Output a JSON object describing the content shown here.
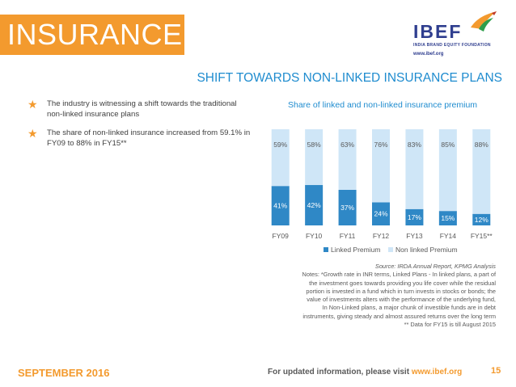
{
  "header": {
    "title": "INSURANCE",
    "logo": {
      "name": "IBEF",
      "subtitle": "INDIA BRAND EQUITY FOUNDATION",
      "url": "www.ibef.org"
    }
  },
  "subtitle": "SHIFT TOWARDS NON-LINKED INSURANCE PLANS",
  "bullets": [
    "The industry is witnessing a shift towards the traditional non-linked insurance plans",
    "The share of non-linked insurance increased from 59.1% in FY09 to 88% in FY15**"
  ],
  "chart_title": "Share of linked and non-linked insurance premium",
  "chart_data": {
    "type": "bar",
    "stacked": true,
    "categories": [
      "FY09",
      "FY10",
      "FY11",
      "FY12",
      "FY13",
      "FY14",
      "FY15**"
    ],
    "series": [
      {
        "name": "Linked Premium",
        "values": [
          41,
          42,
          37,
          24,
          17,
          15,
          12
        ],
        "labels": [
          "41%",
          "42%",
          "37%",
          "24%",
          "17%",
          "15%",
          "12%"
        ],
        "color": "#2f88c6"
      },
      {
        "name": "Non linked Premium",
        "values": [
          59,
          58,
          63,
          76,
          83,
          85,
          88
        ],
        "labels": [
          "59%",
          "58%",
          "63%",
          "76%",
          "83%",
          "85%",
          "88%"
        ],
        "color": "#cfe6f7"
      }
    ],
    "ylim": [
      0,
      100
    ],
    "grid": false,
    "legend": "bottom"
  },
  "source": {
    "source_line": "Source: IRDA Annual Report, KPMG Analysis",
    "notes": [
      "Notes: *Growth rate in INR terms, Linked Plans - In linked plans, a part of",
      "the investment goes towards providing you life cover while the residual",
      "portion is invested in a fund which in turn invests in stocks or bonds; the",
      "value of investments alters with the performance of the underlying fund,",
      "In Non-Linked plans, a major chunk of investible funds are in debt",
      "instruments, giving steady and almost assured returns over the long term",
      "** Data for FY15 is till August 2015"
    ]
  },
  "footer": {
    "date": "SEPTEMBER 2016",
    "info_prefix": "For updated information, please visit",
    "info_url": "www.ibef.org",
    "page": "15"
  },
  "colors": {
    "accent_orange": "#f39a2e",
    "title_blue": "#1f8ccf",
    "logo_blue": "#2f3e8f"
  }
}
